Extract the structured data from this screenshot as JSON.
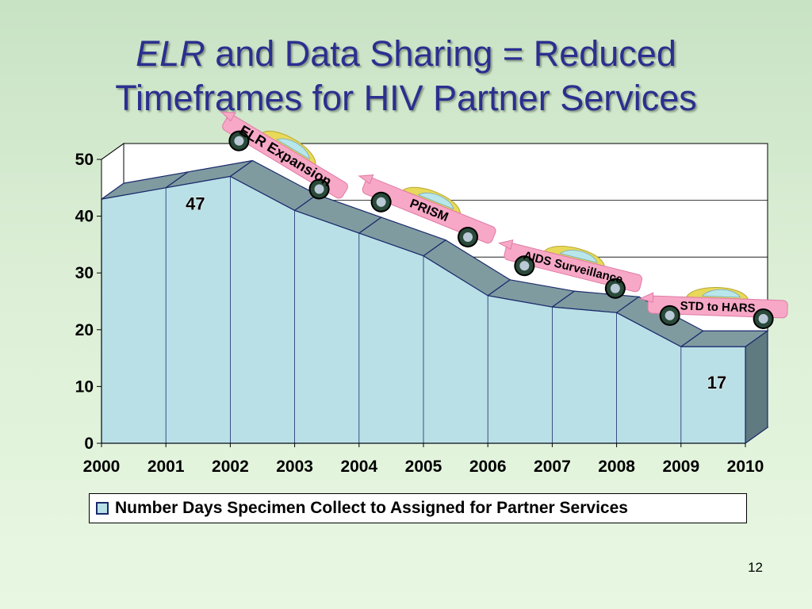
{
  "slide": {
    "title_italic": "ELR",
    "title_line1_rest": " and Data Sharing = Reduced",
    "title_line2": "Timeframes for HIV Partner Services",
    "page_number": "12"
  },
  "legend": {
    "label": "Number Days Specimen Collect to Assigned for Partner Services"
  },
  "chart_data": {
    "type": "area",
    "title": "",
    "xlabel": "",
    "ylabel": "",
    "categories": [
      "2000",
      "2001",
      "2002",
      "2003",
      "2004",
      "2005",
      "2006",
      "2007",
      "2008",
      "2009",
      "2010"
    ],
    "series": [
      {
        "name": "Number Days Specimen Collect to Assigned for Partner Services",
        "values": [
          43,
          45,
          47,
          41,
          37,
          33,
          26,
          24,
          23,
          17,
          17
        ]
      }
    ],
    "ylim": [
      0,
      50
    ],
    "yticks": [
      0,
      10,
      20,
      30,
      40,
      50
    ],
    "grid": true,
    "three_d": true,
    "data_labels": [
      {
        "category": "2002",
        "text": "47"
      },
      {
        "category": "2010",
        "text": "17"
      }
    ],
    "annotations": [
      {
        "text": "ELR Expansion",
        "between": [
          "2002",
          "2003"
        ]
      },
      {
        "text": "PRISM",
        "between": [
          "2004",
          "2005"
        ]
      },
      {
        "text": "AIDS Surveillance",
        "between": [
          "2007",
          "2008"
        ]
      },
      {
        "text": "STD to HARS",
        "between": [
          "2009",
          "2010"
        ]
      }
    ],
    "legend_position": "bottom",
    "colors": {
      "front": "#b9e0e6",
      "top": "#7f9ba0",
      "side": "#5f7a80",
      "outline": "#1a2a6c"
    }
  }
}
